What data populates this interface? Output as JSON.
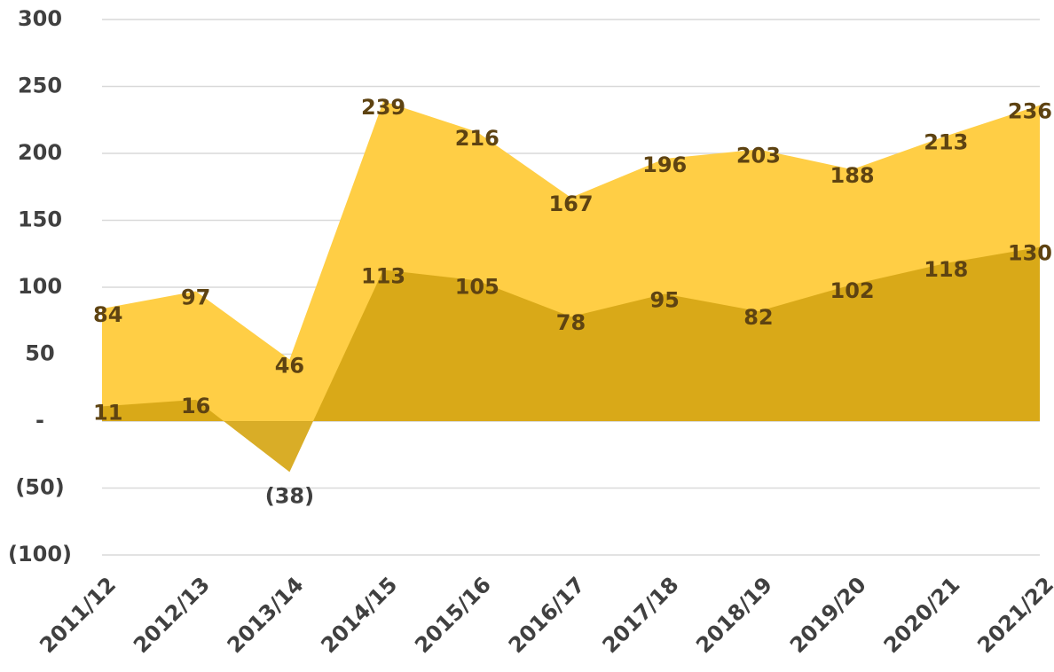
{
  "chart_data": {
    "type": "area",
    "categories": [
      "2011/12",
      "2012/13",
      "2013/14",
      "2014/15",
      "2015/16",
      "2016/17",
      "2017/18",
      "2018/19",
      "2019/20",
      "2020/21",
      "2021/22"
    ],
    "series": [
      {
        "color": "#FFCE45",
        "values": [
          84,
          97,
          46,
          239,
          216,
          167,
          196,
          203,
          188,
          213,
          236
        ]
      },
      {
        "color": "#D6A615",
        "values": [
          11,
          16,
          -38,
          113,
          105,
          78,
          95,
          82,
          102,
          118,
          130
        ],
        "value_labels": [
          "11",
          "16",
          "(38)",
          "113",
          "105",
          "78",
          "95",
          "82",
          "102",
          "118",
          "130"
        ]
      }
    ],
    "ylim": [
      -100,
      300
    ],
    "yticks": [
      {
        "value": -100,
        "label": "(100)"
      },
      {
        "value": -50,
        "label": "(50)"
      },
      {
        "value": 0,
        "label": "-"
      },
      50,
      100,
      150,
      200,
      250,
      300
    ],
    "grid": true
  }
}
